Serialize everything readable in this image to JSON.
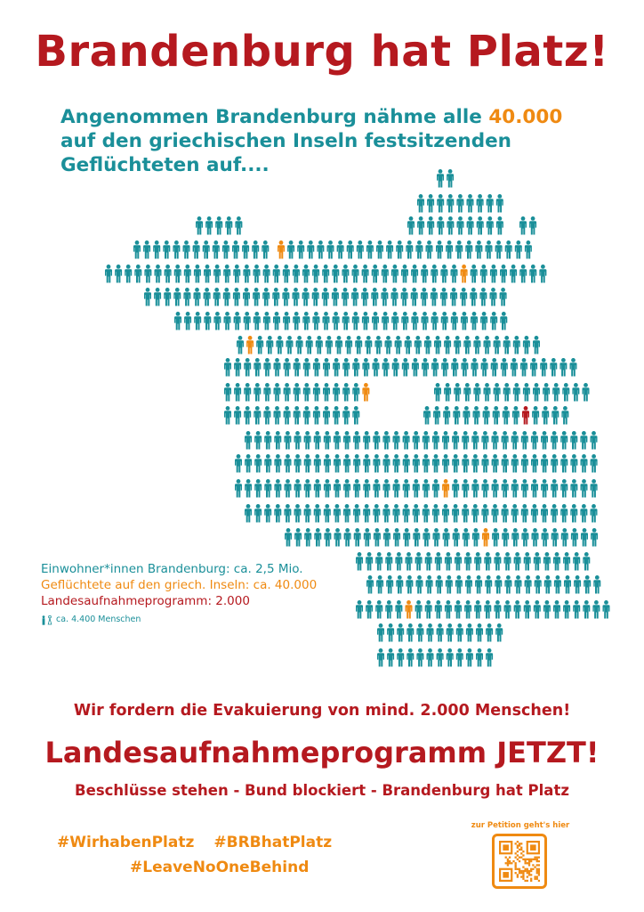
{
  "title": "Brandenburg hat Platz!",
  "intro": {
    "line1_before": "Angenommen Brandenburg nähme alle ",
    "line1_number": "40.000",
    "line2": "auf den griechischen Inseln festsitzenden",
    "line3": "Geflüchteten auf...."
  },
  "legend": {
    "residents": "Einwohner*innen Brandenburg: ca. 2,5 Mio.",
    "refugees": "Geflüchtete auf den griech. Inseln: ca. 40.000",
    "program": "Landesaufnahmeprogramm: 2.000",
    "scale": "ca. 4.400 Menschen"
  },
  "demand": "Wir fordern die Evakuierung von mind. 2.000 Menschen!",
  "program_headline": "Landesaufnahmeprogramm JETZT!",
  "subline": "Beschlüsse stehen - Bund blockiert - Brandenburg hat Platz",
  "hashtags": [
    "#WirhabenPlatz",
    "#BRBhatPlatz",
    "#LeaveNoOneBehind"
  ],
  "petition_label": "zur Petition geht's hier",
  "colors": {
    "teal": "#1a8f99",
    "orange": "#ef8a12",
    "red": "#b5191f"
  }
}
